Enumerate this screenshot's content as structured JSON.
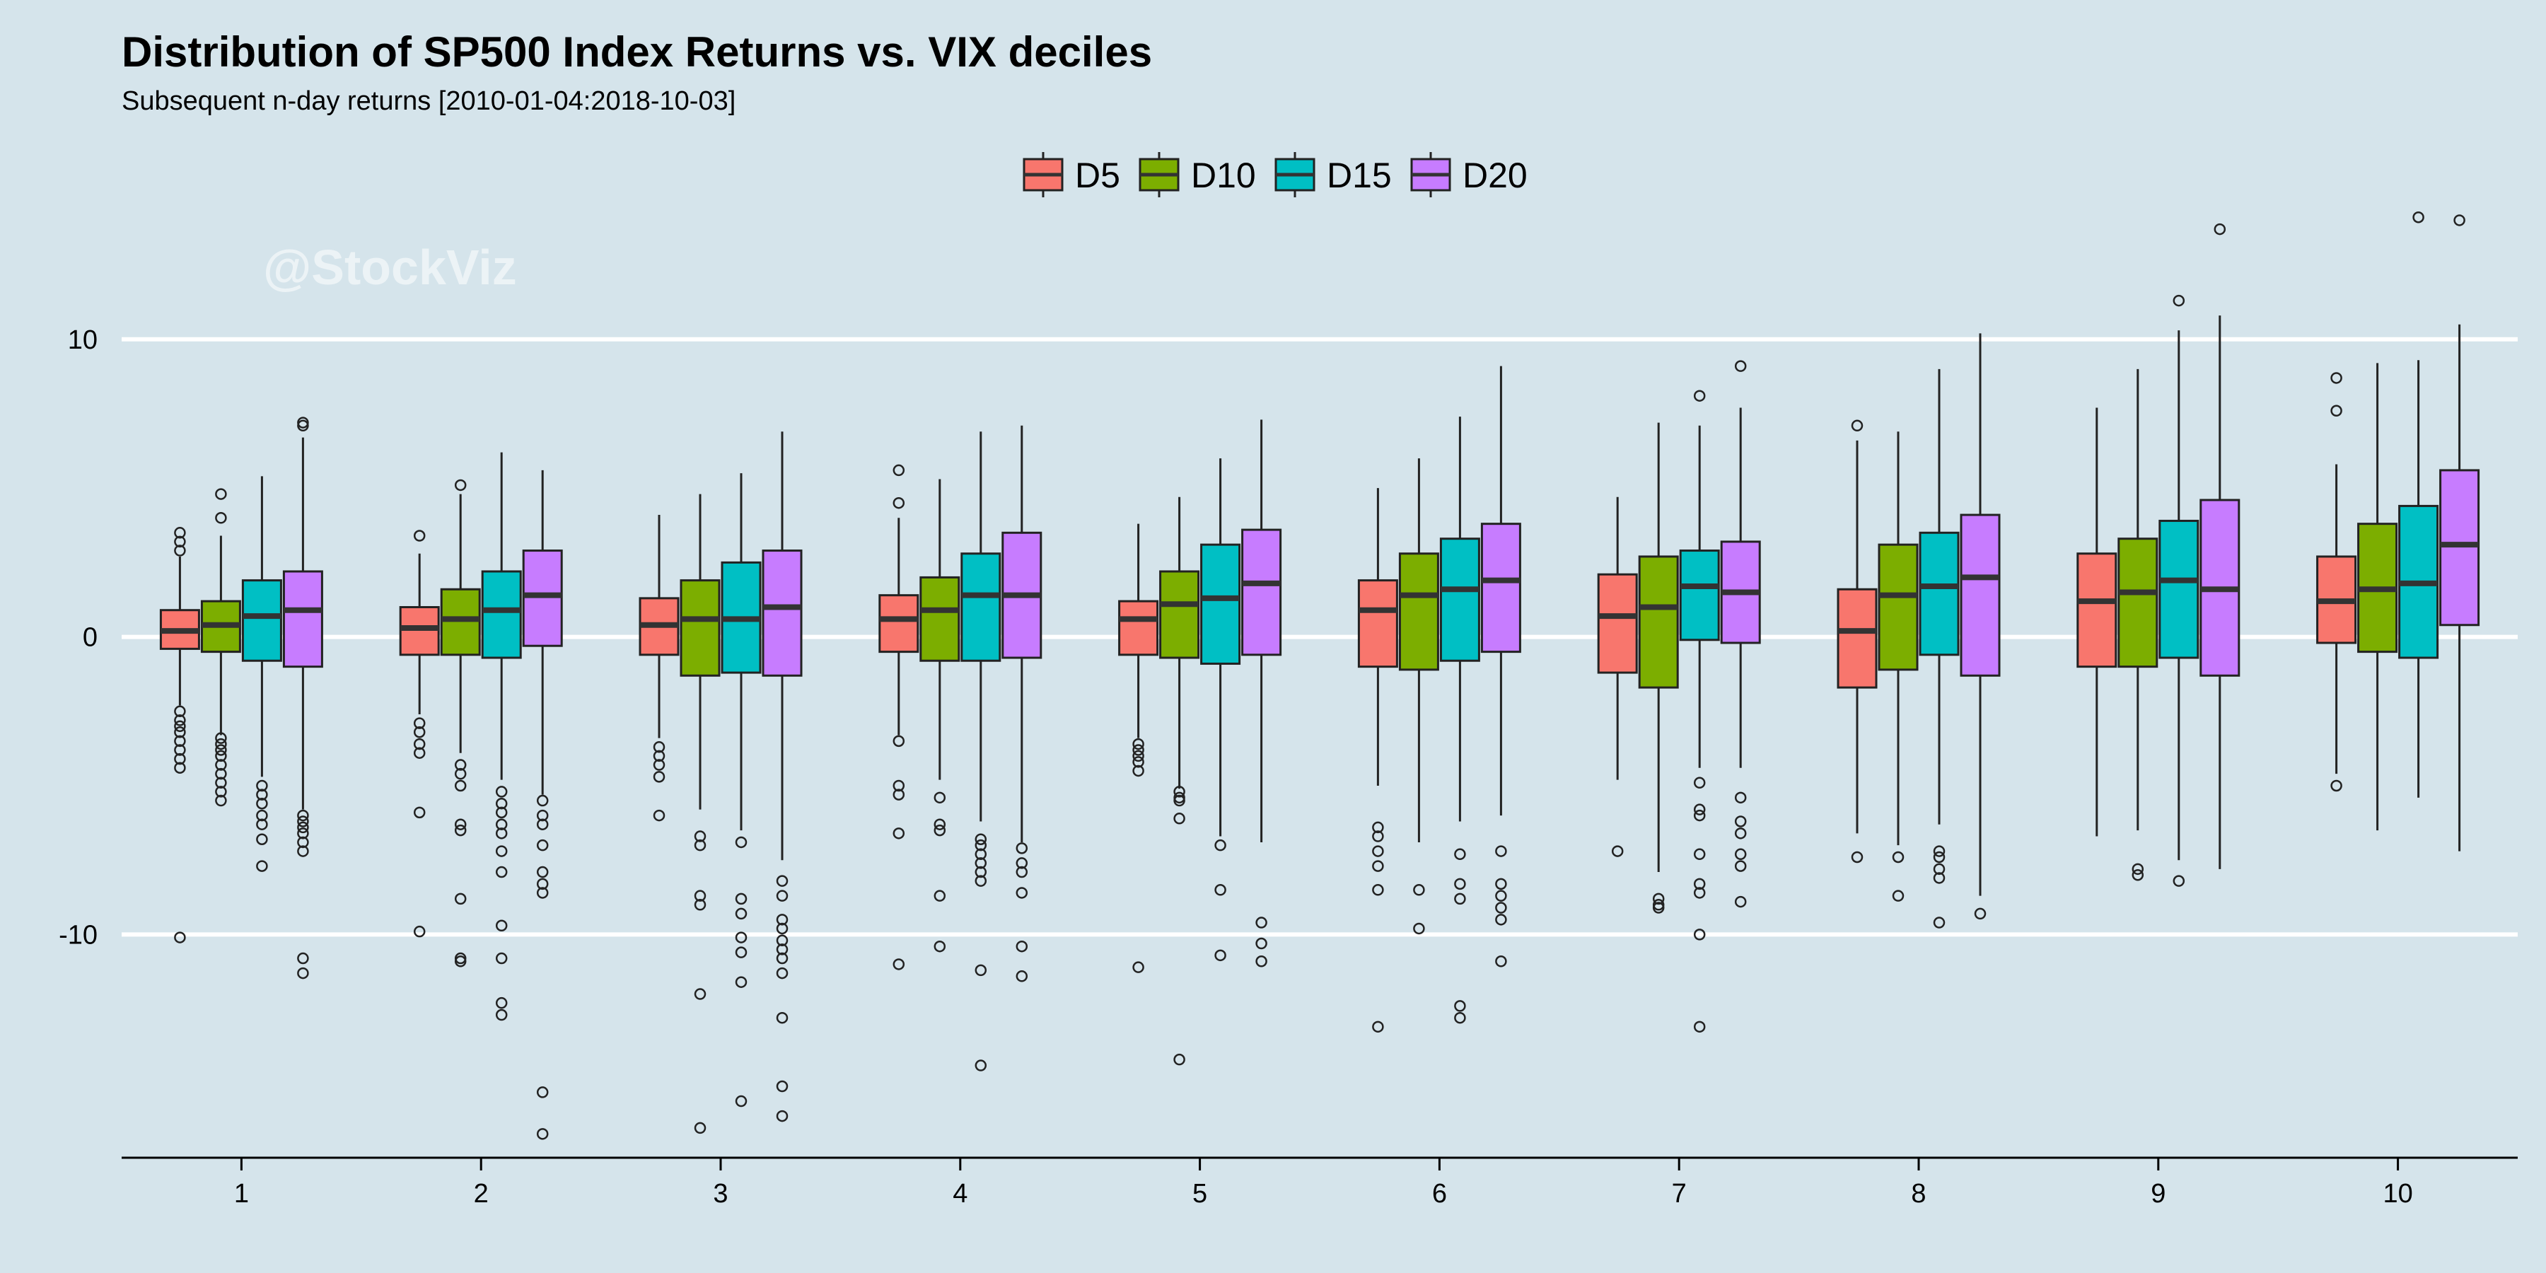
{
  "watermark": "@StockViz",
  "chart_data": {
    "type": "box",
    "title": "Distribution of SP500 Index Returns vs. VIX deciles",
    "subtitle": "Subsequent n-day returns [2010-01-04:2018-10-03]",
    "xlabel": "",
    "ylabel": "",
    "categories": [
      "1",
      "2",
      "3",
      "4",
      "5",
      "6",
      "7",
      "8",
      "9",
      "10"
    ],
    "yticks": [
      -10,
      0,
      10
    ],
    "ylim": [
      -17.5,
      19.5
    ],
    "grid": "horizontal major lines",
    "legend_position": "top-center",
    "colors": {
      "D5": "#f8766d",
      "D10": "#7cae00",
      "D15": "#00bfc4",
      "D20": "#c77cff",
      "background": "#d5e4eb",
      "grid": "#ffffff",
      "median": "#333333"
    },
    "series": [
      {
        "name": "D5",
        "boxes": [
          {
            "q1": -0.4,
            "median": 0.2,
            "q3": 0.9,
            "whisker_low": -2.3,
            "whisker_high": 2.7,
            "outliers": [
              2.9,
              3.2,
              3.5,
              -2.5,
              -2.8,
              -3.0,
              -3.2,
              -3.5,
              -3.8,
              -4.1,
              -4.4,
              -10.1
            ]
          },
          {
            "q1": -0.6,
            "median": 0.3,
            "q3": 1.0,
            "whisker_low": -2.6,
            "whisker_high": 2.8,
            "outliers": [
              3.4,
              -2.9,
              -3.2,
              -3.6,
              -3.9,
              -5.9,
              -9.9
            ]
          },
          {
            "q1": -0.6,
            "median": 0.4,
            "q3": 1.3,
            "whisker_low": -3.4,
            "whisker_high": 4.1,
            "outliers": [
              -3.7,
              -4.0,
              -4.3,
              -4.7,
              -6.0
            ]
          },
          {
            "q1": -0.5,
            "median": 0.6,
            "q3": 1.4,
            "whisker_low": -3.3,
            "whisker_high": 4.0,
            "outliers": [
              4.5,
              5.6,
              -3.5,
              -5.0,
              -5.3,
              -6.6,
              -11.0
            ]
          },
          {
            "q1": -0.6,
            "median": 0.6,
            "q3": 1.2,
            "whisker_low": -3.4,
            "whisker_high": 3.8,
            "outliers": [
              -3.6,
              -3.8,
              -4.0,
              -4.2,
              -4.5,
              -11.1
            ]
          },
          {
            "q1": -1.0,
            "median": 0.9,
            "q3": 1.9,
            "whisker_low": -5.0,
            "whisker_high": 5.0,
            "outliers": [
              -6.4,
              -6.7,
              -7.2,
              -7.7,
              -8.5,
              -13.1
            ]
          },
          {
            "q1": -1.2,
            "median": 0.7,
            "q3": 2.1,
            "whisker_low": -4.8,
            "whisker_high": 4.7,
            "outliers": [
              -7.2
            ]
          },
          {
            "q1": -1.7,
            "median": 0.2,
            "q3": 1.6,
            "whisker_low": -6.6,
            "whisker_high": 6.6,
            "outliers": [
              7.1,
              -7.4
            ]
          },
          {
            "q1": -1.0,
            "median": 1.2,
            "q3": 2.8,
            "whisker_low": -6.7,
            "whisker_high": 7.7,
            "outliers": []
          },
          {
            "q1": -0.2,
            "median": 1.2,
            "q3": 2.7,
            "whisker_low": -4.6,
            "whisker_high": 5.8,
            "outliers": [
              7.6,
              8.7,
              -5.0
            ]
          }
        ]
      },
      {
        "name": "D10",
        "boxes": [
          {
            "q1": -0.5,
            "median": 0.4,
            "q3": 1.2,
            "whisker_low": -3.3,
            "whisker_high": 3.4,
            "outliers": [
              4.0,
              4.8,
              -3.4,
              -3.6,
              -3.8,
              -4.0,
              -4.3,
              -4.6,
              -4.9,
              -5.2,
              -5.5
            ]
          },
          {
            "q1": -0.6,
            "median": 0.6,
            "q3": 1.6,
            "whisker_low": -3.9,
            "whisker_high": 4.8,
            "outliers": [
              5.1,
              -4.3,
              -4.6,
              -5.0,
              -6.3,
              -6.5,
              -8.8,
              -10.8,
              -10.9
            ]
          },
          {
            "q1": -1.3,
            "median": 0.6,
            "q3": 1.9,
            "whisker_low": -5.8,
            "whisker_high": 4.8,
            "outliers": [
              -6.7,
              -7.0,
              -8.7,
              -9.0,
              -12.0,
              -16.5
            ]
          },
          {
            "q1": -0.8,
            "median": 0.9,
            "q3": 2.0,
            "whisker_low": -4.8,
            "whisker_high": 5.3,
            "outliers": [
              -5.4,
              -6.3,
              -6.5,
              -8.7,
              -10.4
            ]
          },
          {
            "q1": -0.7,
            "median": 1.1,
            "q3": 2.2,
            "whisker_low": -5.1,
            "whisker_high": 4.7,
            "outliers": [
              -5.2,
              -5.4,
              -5.5,
              -6.1,
              -14.2
            ]
          },
          {
            "q1": -1.1,
            "median": 1.4,
            "q3": 2.8,
            "whisker_low": -6.9,
            "whisker_high": 6.0,
            "outliers": [
              -8.5,
              -9.8
            ]
          },
          {
            "q1": -1.7,
            "median": 1.0,
            "q3": 2.7,
            "whisker_low": -7.9,
            "whisker_high": 7.2,
            "outliers": [
              -8.8,
              -9.0,
              -9.1
            ]
          },
          {
            "q1": -1.1,
            "median": 1.4,
            "q3": 3.1,
            "whisker_low": -7.0,
            "whisker_high": 6.9,
            "outliers": [
              -7.4,
              -8.7
            ]
          },
          {
            "q1": -1.0,
            "median": 1.5,
            "q3": 3.3,
            "whisker_low": -6.5,
            "whisker_high": 9.0,
            "outliers": [
              -7.8,
              -8.0
            ]
          },
          {
            "q1": -0.5,
            "median": 1.6,
            "q3": 3.8,
            "whisker_low": -6.5,
            "whisker_high": 9.2,
            "outliers": []
          }
        ]
      },
      {
        "name": "D15",
        "boxes": [
          {
            "q1": -0.8,
            "median": 0.7,
            "q3": 1.9,
            "whisker_low": -4.7,
            "whisker_high": 5.4,
            "outliers": [
              -5.0,
              -5.3,
              -5.6,
              -6.0,
              -6.3,
              -6.8,
              -7.7
            ]
          },
          {
            "q1": -0.7,
            "median": 0.9,
            "q3": 2.2,
            "whisker_low": -4.8,
            "whisker_high": 6.2,
            "outliers": [
              -5.2,
              -5.6,
              -5.9,
              -6.3,
              -6.6,
              -7.2,
              -7.9,
              -9.7,
              -10.8,
              -12.3,
              -12.7
            ]
          },
          {
            "q1": -1.2,
            "median": 0.6,
            "q3": 2.5,
            "whisker_low": -6.5,
            "whisker_high": 5.5,
            "outliers": [
              -6.9,
              -8.8,
              -9.3,
              -10.1,
              -10.6,
              -11.6,
              -15.6
            ]
          },
          {
            "q1": -0.8,
            "median": 1.4,
            "q3": 2.8,
            "whisker_low": -6.2,
            "whisker_high": 6.9,
            "outliers": [
              -6.8,
              -7.0,
              -7.3,
              -7.6,
              -7.9,
              -8.2,
              -11.2,
              -14.4
            ]
          },
          {
            "q1": -0.9,
            "median": 1.3,
            "q3": 3.1,
            "whisker_low": -6.7,
            "whisker_high": 6.0,
            "outliers": [
              -7.0,
              -8.5,
              -10.7
            ]
          },
          {
            "q1": -0.8,
            "median": 1.6,
            "q3": 3.3,
            "whisker_low": -6.2,
            "whisker_high": 7.4,
            "outliers": [
              -7.3,
              -8.3,
              -8.8,
              -12.4,
              -12.8
            ]
          },
          {
            "q1": -0.1,
            "median": 1.7,
            "q3": 2.9,
            "whisker_low": -4.4,
            "whisker_high": 7.1,
            "outliers": [
              8.1,
              -4.9,
              -5.8,
              -6.0,
              -7.3,
              -8.3,
              -8.6,
              -10.0,
              -13.1
            ]
          },
          {
            "q1": -0.6,
            "median": 1.7,
            "q3": 3.5,
            "whisker_low": -6.3,
            "whisker_high": 9.0,
            "outliers": [
              -7.2,
              -7.4,
              -7.8,
              -8.1,
              -9.6
            ]
          },
          {
            "q1": -0.7,
            "median": 1.9,
            "q3": 3.9,
            "whisker_low": -7.5,
            "whisker_high": 10.3,
            "outliers": [
              11.3,
              -8.2
            ]
          },
          {
            "q1": -0.7,
            "median": 1.8,
            "q3": 4.4,
            "whisker_low": -5.4,
            "whisker_high": 9.3,
            "outliers": [
              14.1
            ]
          }
        ]
      },
      {
        "name": "D20",
        "boxes": [
          {
            "q1": -1.0,
            "median": 0.9,
            "q3": 2.2,
            "whisker_low": -5.8,
            "whisker_high": 6.7,
            "outliers": [
              7.1,
              7.2,
              -6.0,
              -6.2,
              -6.4,
              -6.6,
              -6.9,
              -7.2,
              -10.8,
              -11.3
            ]
          },
          {
            "q1": -0.3,
            "median": 1.4,
            "q3": 2.9,
            "whisker_low": -5.3,
            "whisker_high": 5.6,
            "outliers": [
              -5.5,
              -6.0,
              -6.3,
              -7.0,
              -7.9,
              -8.3,
              -8.6,
              -15.3,
              -16.7
            ]
          },
          {
            "q1": -1.3,
            "median": 1.0,
            "q3": 2.9,
            "whisker_low": -7.5,
            "whisker_high": 6.9,
            "outliers": [
              -8.2,
              -8.7,
              -9.5,
              -9.8,
              -10.2,
              -10.5,
              -10.8,
              -11.3,
              -12.8,
              -15.1,
              -16.1
            ]
          },
          {
            "q1": -0.7,
            "median": 1.4,
            "q3": 3.5,
            "whisker_low": -6.9,
            "whisker_high": 7.1,
            "outliers": [
              -7.1,
              -7.6,
              -7.9,
              -8.6,
              -10.4,
              -11.4
            ]
          },
          {
            "q1": -0.6,
            "median": 1.8,
            "q3": 3.6,
            "whisker_low": -6.9,
            "whisker_high": 7.3,
            "outliers": [
              -9.6,
              -10.3,
              -10.9
            ]
          },
          {
            "q1": -0.5,
            "median": 1.9,
            "q3": 3.8,
            "whisker_low": -6.0,
            "whisker_high": 9.1,
            "outliers": [
              -7.2,
              -8.3,
              -8.7,
              -9.1,
              -9.5,
              -10.9
            ]
          },
          {
            "q1": -0.2,
            "median": 1.5,
            "q3": 3.2,
            "whisker_low": -4.4,
            "whisker_high": 7.7,
            "outliers": [
              9.1,
              -5.4,
              -6.2,
              -6.6,
              -7.3,
              -7.7,
              -8.9
            ]
          },
          {
            "q1": -1.3,
            "median": 2.0,
            "q3": 4.1,
            "whisker_low": -8.7,
            "whisker_high": 10.2,
            "outliers": [
              -9.3
            ]
          },
          {
            "q1": -1.3,
            "median": 1.6,
            "q3": 4.6,
            "whisker_low": -7.8,
            "whisker_high": 10.8,
            "outliers": [
              13.7
            ]
          },
          {
            "q1": 0.4,
            "median": 3.1,
            "q3": 5.6,
            "whisker_low": -7.2,
            "whisker_high": 10.5,
            "outliers": [
              14.0
            ]
          }
        ]
      }
    ]
  }
}
